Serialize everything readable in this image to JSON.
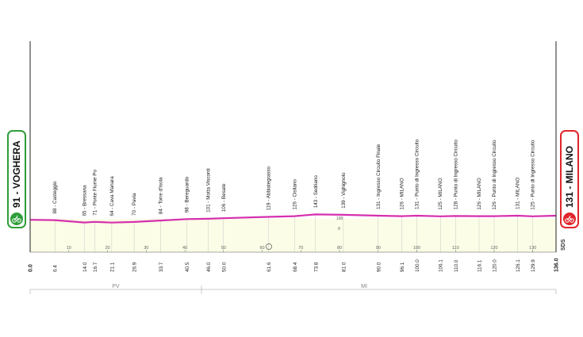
{
  "start": {
    "altitude": "91",
    "name": "VOGHERA",
    "label": "91 - VOGHERA",
    "icon": "cyclist-icon",
    "color": "#2e9e3a"
  },
  "finish": {
    "altitude": "131",
    "name": "MILANO",
    "label": "131 - MILANO",
    "icon": "cyclist-icon",
    "color": "#e0262a"
  },
  "profile_color": "#d62fae",
  "fill_color": "#fbfde6",
  "total_km": 136,
  "scale_ticks": [
    "10",
    "20",
    "30",
    "40",
    "50",
    "60",
    "70",
    "80",
    "90",
    "100",
    "110",
    "120",
    "130"
  ],
  "scale_marks": [
    "100",
    "0"
  ],
  "sds_label": "SDS",
  "km_markers": [
    "0.0",
    "6.4",
    "14.0",
    "16.7",
    "21.1",
    "26.9",
    "33.7",
    "40.5",
    "46.0",
    "50.0",
    "61.6",
    "68.4",
    "73.8",
    "81.0",
    "90.0",
    "96.1",
    "100.0",
    "106.1",
    "110.0",
    "116.1",
    "120.0",
    "126.1",
    "129.9",
    "136.0"
  ],
  "waypoints": [
    {
      "label": "88 - Casteggio"
    },
    {
      "label": "65 - Bressana"
    },
    {
      "label": "71 - Ponte Fiume Po"
    },
    {
      "label": "64 - Cava Manara"
    },
    {
      "label": "70 - Pavia"
    },
    {
      "label": "84 - Torre d'Isola"
    },
    {
      "label": "98 - Bereguardo"
    },
    {
      "label": "101 - Motta Visconti"
    },
    {
      "label": "106 - Besate"
    },
    {
      "label": "119 - Abbiategrasso"
    },
    {
      "label": "126 - Cisliano"
    },
    {
      "label": "143 - Sedriano"
    },
    {
      "label": "139 - Vighignolo"
    },
    {
      "label": "131 - Ingresso Circuito Finale"
    },
    {
      "label": "126 - MILANO"
    },
    {
      "label": "131 - Punto di Ingresso Circuito"
    },
    {
      "label": "125 - MILANO"
    },
    {
      "label": "128 - Punto di Ingresso Circuito"
    },
    {
      "label": "126 - MILANO"
    },
    {
      "label": "126 - Punto di Ingresso Circuito"
    },
    {
      "label": "131 - MILANO"
    },
    {
      "label": "125 - Punto di Ingresso Circuito"
    }
  ],
  "provinces": [
    {
      "label": "PV"
    },
    {
      "label": "MI"
    }
  ],
  "chart_data": {
    "type": "area",
    "title": "",
    "xlabel": "",
    "ylabel": "",
    "x": [
      0.0,
      6.4,
      14.0,
      16.7,
      21.1,
      26.9,
      33.7,
      40.5,
      46.0,
      50.0,
      61.6,
      68.4,
      73.8,
      81.0,
      90.0,
      96.1,
      100.0,
      106.1,
      110.0,
      116.1,
      120.0,
      126.1,
      129.9,
      136.0
    ],
    "y": [
      91,
      88,
      65,
      71,
      64,
      70,
      84,
      98,
      101,
      106,
      119,
      126,
      143,
      139,
      131,
      126,
      131,
      125,
      128,
      126,
      126,
      131,
      125,
      131
    ],
    "xlim": [
      0,
      136
    ]
  }
}
